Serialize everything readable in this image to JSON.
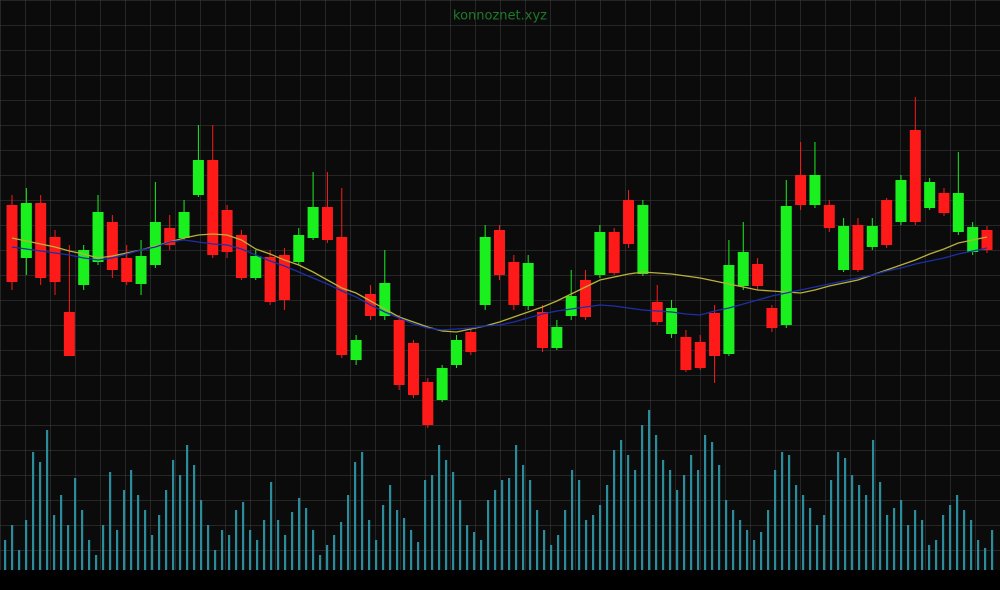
{
  "chart_data": [
    {
      "type": "candlestick",
      "title": "konnoznet.xyz",
      "title_color": "#1f7a2a",
      "ylim": [
        0,
        590
      ],
      "up_color": "#19f01e",
      "down_color": "#ff1a1a",
      "open": [
        385,
        332,
        387,
        353,
        278,
        305,
        328,
        368,
        332,
        306,
        325,
        362,
        352,
        395,
        430,
        380,
        355,
        312,
        333,
        335,
        328,
        352,
        383,
        353,
        230,
        296,
        274,
        270,
        247,
        208,
        190,
        225,
        258,
        285,
        360,
        328,
        284,
        278,
        242,
        274,
        310,
        315,
        358,
        390,
        316,
        288,
        256,
        253,
        248,
        277,
        236,
        304,
        326,
        282,
        265,
        415,
        385,
        385,
        320,
        365,
        343,
        390,
        368,
        460,
        382,
        397,
        358,
        338,
        360
      ],
      "high": [
        395,
        402,
        395,
        360,
        345,
        345,
        395,
        375,
        345,
        350,
        408,
        375,
        390,
        465,
        465,
        385,
        360,
        340,
        340,
        342,
        362,
        418,
        418,
        402,
        255,
        305,
        340,
        275,
        250,
        212,
        225,
        255,
        262,
        365,
        365,
        335,
        335,
        285,
        270,
        320,
        320,
        365,
        362,
        400,
        390,
        305,
        290,
        260,
        255,
        285,
        350,
        368,
        332,
        285,
        410,
        448,
        448,
        390,
        372,
        372,
        372,
        392,
        415,
        493,
        412,
        402,
        438,
        368,
        364
      ],
      "low": [
        300,
        315,
        305,
        295,
        234,
        300,
        325,
        312,
        305,
        295,
        322,
        340,
        350,
        393,
        332,
        332,
        310,
        310,
        285,
        280,
        325,
        350,
        347,
        232,
        225,
        270,
        270,
        200,
        192,
        162,
        188,
        222,
        235,
        280,
        310,
        280,
        280,
        238,
        240,
        270,
        270,
        312,
        315,
        342,
        314,
        265,
        252,
        218,
        220,
        207,
        234,
        300,
        300,
        258,
        262,
        380,
        382,
        358,
        318,
        318,
        340,
        342,
        365,
        365,
        380,
        374,
        355,
        335,
        337
      ],
      "close": [
        308,
        387,
        312,
        308,
        234,
        340,
        378,
        320,
        308,
        334,
        368,
        345,
        378,
        430,
        335,
        338,
        312,
        334,
        288,
        290,
        355,
        383,
        350,
        235,
        250,
        274,
        307,
        205,
        195,
        165,
        222,
        250,
        238,
        353,
        315,
        285,
        327,
        242,
        263,
        294,
        273,
        358,
        317,
        346,
        385,
        268,
        282,
        220,
        222,
        234,
        325,
        338,
        304,
        262,
        384,
        385,
        415,
        362,
        364,
        320,
        364,
        345,
        410,
        368,
        408,
        377,
        397,
        363,
        340
      ],
      "lines": [
        {
          "color": "#b8b23a",
          "values": [
            352,
            349,
            346,
            343,
            339,
            336,
            332,
            334,
            337,
            340,
            344,
            348,
            352,
            355,
            356,
            355,
            350,
            341,
            336,
            330,
            325,
            318,
            310,
            302,
            297,
            289,
            281,
            273,
            268,
            263,
            259,
            258,
            261,
            264,
            268,
            273,
            278,
            283,
            289,
            296,
            303,
            310,
            313,
            316,
            318,
            317,
            316,
            314,
            312,
            309,
            306,
            303,
            300,
            299,
            298,
            297,
            300,
            304,
            307,
            310,
            315,
            320,
            325,
            330,
            336,
            341,
            347,
            350,
            353
          ]
        },
        {
          "color": "#1c2fa8",
          "values": [
            343,
            341,
            339,
            337,
            335,
            332,
            330,
            332,
            336,
            340,
            343,
            348,
            350,
            348,
            346,
            345,
            341,
            335,
            329,
            324,
            318,
            312,
            306,
            299,
            293,
            285,
            278,
            272,
            266,
            262,
            260,
            261,
            262,
            264,
            265,
            268,
            272,
            276,
            279,
            281,
            283,
            285,
            284,
            282,
            280,
            279,
            278,
            276,
            275,
            279,
            282,
            286,
            290,
            294,
            297,
            300,
            303,
            306,
            309,
            312,
            315,
            319,
            322,
            326,
            329,
            332,
            336,
            339,
            342
          ]
        }
      ]
    },
    {
      "type": "bar",
      "ylim": [
        0,
        170
      ],
      "color": "#2b8d9c",
      "values": [
        30,
        45,
        20,
        50,
        118,
        108,
        140,
        55,
        75,
        45,
        92,
        60,
        30,
        15,
        45,
        98,
        40,
        80,
        100,
        75,
        60,
        35,
        55,
        80,
        110,
        95,
        125,
        105,
        70,
        45,
        20,
        40,
        35,
        60,
        68,
        40,
        30,
        50,
        88,
        50,
        35,
        58,
        72,
        62,
        40,
        15,
        25,
        35,
        48,
        75,
        108,
        118,
        50,
        30,
        65,
        85,
        60,
        52,
        40,
        28,
        90,
        95,
        125,
        110,
        98,
        70,
        45,
        38,
        30,
        70,
        80,
        90,
        92,
        125,
        105,
        90,
        60,
        40,
        25,
        35,
        60,
        100,
        90,
        50,
        55,
        65,
        85,
        120,
        130,
        115,
        100,
        145,
        160,
        135,
        110,
        100,
        80,
        95,
        115,
        100,
        135,
        128,
        105,
        70,
        60,
        50,
        40,
        30,
        38,
        60,
        100,
        118,
        115,
        85,
        75,
        62,
        45,
        55,
        90,
        118,
        112,
        95,
        85,
        75,
        130,
        88,
        55,
        62,
        70,
        45,
        60,
        50,
        25,
        30,
        55,
        65,
        75,
        60,
        50,
        30,
        22,
        40
      ]
    }
  ]
}
